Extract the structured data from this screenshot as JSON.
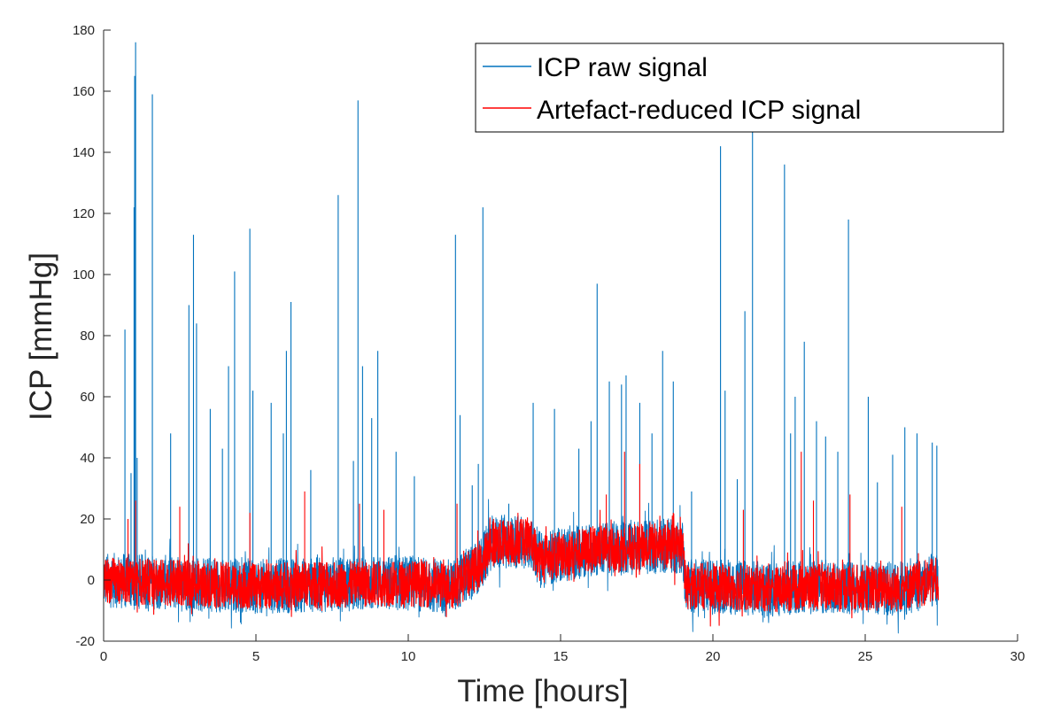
{
  "chart_data": {
    "type": "line",
    "title": "",
    "xlabel": "Time [hours]",
    "ylabel": "ICP [mmHg]",
    "xlim": [
      0,
      30
    ],
    "ylim": [
      -20,
      180
    ],
    "x_ticks": [
      "0",
      "5",
      "10",
      "15",
      "20",
      "25",
      "30"
    ],
    "y_ticks": [
      "-20",
      "0",
      "20",
      "40",
      "60",
      "80",
      "100",
      "120",
      "140",
      "160",
      "180"
    ],
    "grid": false,
    "legend_position": "top-right",
    "x_end": 27.4,
    "series": [
      {
        "name": "ICP raw signal",
        "color": "#0072BD",
        "baseline": [
          [
            0,
            0
          ],
          [
            5,
            -2
          ],
          [
            10,
            -1
          ],
          [
            11.5,
            -2
          ],
          [
            12.0,
            2
          ],
          [
            12.4,
            5
          ],
          [
            12.7,
            12
          ],
          [
            14.0,
            13
          ],
          [
            14.3,
            7
          ],
          [
            16.0,
            10
          ],
          [
            18.0,
            11
          ],
          [
            19.0,
            11
          ],
          [
            19.1,
            -2
          ],
          [
            20,
            -2
          ],
          [
            22,
            -3
          ],
          [
            24,
            -2
          ],
          [
            26,
            -3
          ],
          [
            27.4,
            0
          ]
        ],
        "spikes": [
          [
            0.7,
            82
          ],
          [
            0.9,
            35
          ],
          [
            1.0,
            122
          ],
          [
            1.02,
            165
          ],
          [
            1.05,
            176
          ],
          [
            1.1,
            40
          ],
          [
            1.6,
            159
          ],
          [
            2.2,
            48
          ],
          [
            2.8,
            90
          ],
          [
            2.95,
            113
          ],
          [
            3.05,
            84
          ],
          [
            3.5,
            56
          ],
          [
            3.9,
            43
          ],
          [
            4.1,
            70
          ],
          [
            4.3,
            101
          ],
          [
            4.8,
            115
          ],
          [
            4.9,
            62
          ],
          [
            5.5,
            58
          ],
          [
            5.9,
            48
          ],
          [
            6.0,
            75
          ],
          [
            6.15,
            91
          ],
          [
            6.8,
            36
          ],
          [
            7.7,
            126
          ],
          [
            8.2,
            39
          ],
          [
            8.35,
            157
          ],
          [
            8.5,
            70
          ],
          [
            8.8,
            53
          ],
          [
            9.0,
            75
          ],
          [
            9.6,
            42
          ],
          [
            10.2,
            34
          ],
          [
            11.55,
            113
          ],
          [
            11.7,
            54
          ],
          [
            12.1,
            31
          ],
          [
            12.3,
            38
          ],
          [
            12.45,
            122
          ],
          [
            13.3,
            25
          ],
          [
            14.1,
            58
          ],
          [
            14.8,
            56
          ],
          [
            15.6,
            43
          ],
          [
            16.0,
            52
          ],
          [
            16.2,
            97
          ],
          [
            16.6,
            65
          ],
          [
            17.0,
            64
          ],
          [
            17.15,
            67
          ],
          [
            17.6,
            58
          ],
          [
            18.0,
            48
          ],
          [
            18.35,
            75
          ],
          [
            18.7,
            65
          ],
          [
            19.3,
            29
          ],
          [
            20.25,
            142
          ],
          [
            20.4,
            62
          ],
          [
            20.8,
            33
          ],
          [
            21.05,
            88
          ],
          [
            21.3,
            147
          ],
          [
            22.35,
            136
          ],
          [
            22.55,
            48
          ],
          [
            22.7,
            60
          ],
          [
            23.0,
            78
          ],
          [
            23.4,
            52
          ],
          [
            23.7,
            47
          ],
          [
            24.1,
            42
          ],
          [
            24.45,
            118
          ],
          [
            25.1,
            60
          ],
          [
            25.4,
            32
          ],
          [
            25.9,
            41
          ],
          [
            26.3,
            50
          ],
          [
            26.7,
            48
          ],
          [
            27.2,
            45
          ],
          [
            27.35,
            44
          ]
        ]
      },
      {
        "name": "Artefact-reduced ICP signal",
        "color": "#FF0000",
        "baseline": [
          [
            0,
            0
          ],
          [
            5,
            -2
          ],
          [
            10,
            -1
          ],
          [
            11.5,
            -2
          ],
          [
            12.0,
            2
          ],
          [
            12.4,
            5
          ],
          [
            12.7,
            12
          ],
          [
            14.0,
            13
          ],
          [
            14.3,
            7
          ],
          [
            16.0,
            10
          ],
          [
            18.0,
            11
          ],
          [
            19.0,
            11
          ],
          [
            19.1,
            -2
          ],
          [
            20,
            -2
          ],
          [
            22,
            -3
          ],
          [
            24,
            -2
          ],
          [
            26,
            -3
          ],
          [
            27.4,
            0
          ]
        ],
        "spikes": [
          [
            0.8,
            20
          ],
          [
            1.05,
            26
          ],
          [
            2.5,
            24
          ],
          [
            4.8,
            22
          ],
          [
            6.6,
            29
          ],
          [
            8.4,
            25
          ],
          [
            9.2,
            23
          ],
          [
            11.6,
            25
          ],
          [
            12.8,
            20
          ],
          [
            13.6,
            22
          ],
          [
            16.5,
            28
          ],
          [
            17.1,
            42
          ],
          [
            17.6,
            38
          ],
          [
            18.7,
            22
          ],
          [
            21.0,
            23
          ],
          [
            22.9,
            42
          ],
          [
            23.3,
            26
          ],
          [
            24.5,
            28
          ],
          [
            26.2,
            24
          ]
        ]
      }
    ]
  }
}
